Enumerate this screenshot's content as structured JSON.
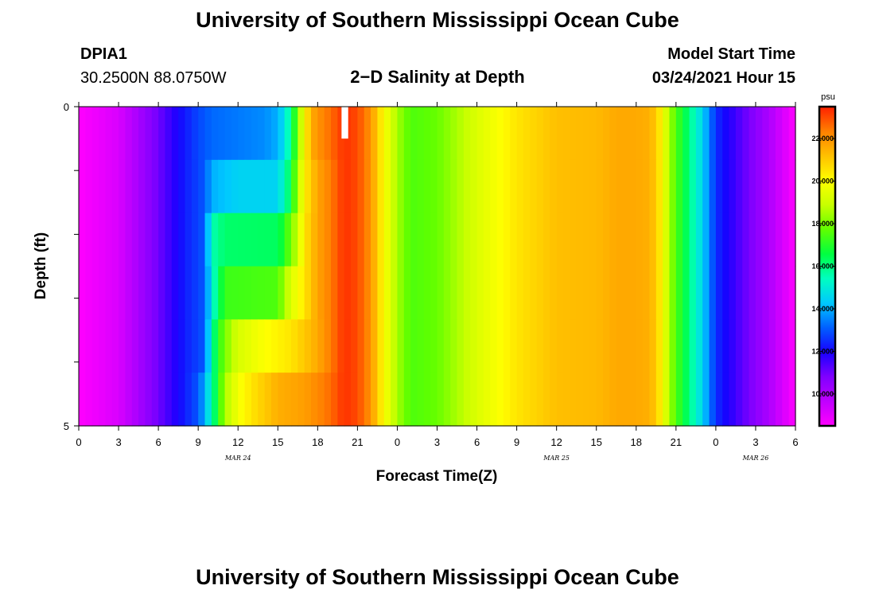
{
  "page": {
    "title_top": "University of Southern Mississippi Ocean Cube",
    "title_bottom": "University of Southern Mississippi Ocean Cube",
    "station_id": "DPIA1",
    "station_coords": "30.2500N 88.0750W",
    "plot_title": "2−D Salinity at Depth",
    "model_start_label": "Model Start Time",
    "model_start_value": "03/24/2021 Hour 15"
  },
  "colors": {
    "background": "#ffffff",
    "colormap": [
      "#ff00ff",
      "#c000ff",
      "#8000ff",
      "#1800ff",
      "#0060ff",
      "#00c8ff",
      "#00ffc0",
      "#00ff40",
      "#60ff00",
      "#c8ff00",
      "#ffff00",
      "#ffc000",
      "#ff8000",
      "#ff2000"
    ]
  },
  "chart_data": {
    "type": "heatmap",
    "title": "2−D Salinity at Depth",
    "xlabel": "Forecast Time(Z)",
    "ylabel": "Depth (ft)",
    "x_unit": "hours since 03/24 00Z",
    "xlim": [
      0,
      54
    ],
    "ylim": [
      0,
      5
    ],
    "x_ticks": [
      0,
      3,
      6,
      9,
      12,
      15,
      18,
      21,
      24,
      27,
      30,
      33,
      36,
      39,
      42,
      45,
      48,
      51,
      54
    ],
    "x_tick_labels": [
      "0",
      "3",
      "6",
      "9",
      "12",
      "15",
      "18",
      "21",
      "0",
      "3",
      "6",
      "9",
      "12",
      "15",
      "18",
      "21",
      "0",
      "3",
      "6"
    ],
    "date_labels": [
      {
        "x": 12,
        "text": "MAR 24"
      },
      {
        "x": 36,
        "text": "MAR 25"
      },
      {
        "x": 51,
        "text": "MAR 26"
      }
    ],
    "y_ticks": [
      0,
      1,
      2,
      3,
      4,
      5
    ],
    "y_tick_labels": [
      "0",
      "",
      "",
      "",
      "",
      "5"
    ],
    "time_step_hours": 0.5,
    "layer_profiles": [
      [
        [
          0,
          8.5
        ],
        [
          3,
          9.2
        ],
        [
          6,
          11
        ],
        [
          7.5,
          12
        ],
        [
          9,
          12.8
        ],
        [
          10,
          13.2
        ],
        [
          12,
          13.4
        ],
        [
          14,
          13.6
        ],
        [
          15,
          14
        ],
        [
          15.5,
          14.8
        ],
        [
          16,
          16
        ],
        [
          16.5,
          18
        ],
        [
          17,
          20
        ],
        [
          17.5,
          21.5
        ],
        [
          18,
          22
        ],
        [
          19,
          22.6
        ],
        [
          20,
          23.3
        ],
        [
          21,
          23
        ],
        [
          21.5,
          22.5
        ],
        [
          22,
          22
        ],
        [
          22.5,
          21
        ],
        [
          23,
          20
        ],
        [
          24,
          18.5
        ],
        [
          25,
          17.5
        ],
        [
          27,
          17.8
        ],
        [
          28,
          18.3
        ],
        [
          30,
          19.3
        ],
        [
          33,
          20.5
        ],
        [
          36,
          21.2
        ],
        [
          39,
          21.3
        ],
        [
          40.5,
          21.6
        ],
        [
          42,
          21.6
        ],
        [
          43,
          21.5
        ],
        [
          43.5,
          21
        ],
        [
          44,
          20
        ],
        [
          44.5,
          18.5
        ],
        [
          45,
          17.5
        ],
        [
          46,
          16
        ],
        [
          47,
          14.5
        ],
        [
          47.5,
          13.5
        ],
        [
          48,
          12.5
        ],
        [
          50,
          11.2
        ],
        [
          52,
          10
        ],
        [
          54,
          8.5
        ]
      ],
      [
        [
          0,
          8.5
        ],
        [
          3,
          9.2
        ],
        [
          6,
          11
        ],
        [
          8,
          12.3
        ],
        [
          9.5,
          13
        ],
        [
          10,
          14
        ],
        [
          12,
          14.5
        ],
        [
          15,
          14.5
        ],
        [
          15.5,
          15.5
        ],
        [
          16,
          16.5
        ],
        [
          16.5,
          18.5
        ],
        [
          17,
          20.3
        ],
        [
          18,
          21.7
        ],
        [
          19,
          22.4
        ],
        [
          20,
          23.3
        ],
        [
          21,
          23
        ],
        [
          22,
          22
        ],
        [
          22.5,
          21
        ],
        [
          23,
          20
        ],
        [
          24,
          18.5
        ],
        [
          25,
          17.5
        ],
        [
          27,
          17.8
        ],
        [
          28,
          18.3
        ],
        [
          30,
          19.3
        ],
        [
          33,
          20.5
        ],
        [
          36,
          21.2
        ],
        [
          39,
          21.3
        ],
        [
          40.5,
          21.6
        ],
        [
          42,
          21.6
        ],
        [
          43,
          21.5
        ],
        [
          43.5,
          21
        ],
        [
          44,
          20
        ],
        [
          44.5,
          18.5
        ],
        [
          45,
          17.5
        ],
        [
          46,
          16
        ],
        [
          47,
          14.5
        ],
        [
          47.5,
          13.5
        ],
        [
          48,
          12.5
        ],
        [
          50,
          11.2
        ],
        [
          52,
          10
        ],
        [
          54,
          8.5
        ]
      ],
      [
        [
          0,
          8.5
        ],
        [
          3,
          9.2
        ],
        [
          6,
          11
        ],
        [
          8,
          12.3
        ],
        [
          9.5,
          13
        ],
        [
          10,
          15.5
        ],
        [
          11,
          16.2
        ],
        [
          15,
          16.3
        ],
        [
          15.5,
          17
        ],
        [
          16,
          18
        ],
        [
          16.5,
          19
        ],
        [
          17,
          20.5
        ],
        [
          18,
          21.7
        ],
        [
          19,
          22.4
        ],
        [
          20,
          23.3
        ],
        [
          21,
          23
        ],
        [
          22,
          22
        ],
        [
          22.5,
          21
        ],
        [
          23,
          20
        ],
        [
          24,
          18.5
        ],
        [
          25,
          17.5
        ],
        [
          27,
          17.8
        ],
        [
          28,
          18.3
        ],
        [
          30,
          19.3
        ],
        [
          33,
          20.5
        ],
        [
          36,
          21.2
        ],
        [
          39,
          21.3
        ],
        [
          40.5,
          21.6
        ],
        [
          42,
          21.6
        ],
        [
          43,
          21.5
        ],
        [
          43.5,
          21
        ],
        [
          44,
          20
        ],
        [
          44.5,
          18.5
        ],
        [
          45,
          17.5
        ],
        [
          46,
          16
        ],
        [
          47,
          14.5
        ],
        [
          47.5,
          13.5
        ],
        [
          48,
          12.5
        ],
        [
          50,
          11.2
        ],
        [
          52,
          10
        ],
        [
          54,
          8.5
        ]
      ],
      [
        [
          0,
          8.5
        ],
        [
          3,
          9.2
        ],
        [
          6,
          11
        ],
        [
          8,
          12.3
        ],
        [
          9.5,
          13
        ],
        [
          10,
          15
        ],
        [
          11,
          17.3
        ],
        [
          15,
          17.5
        ],
        [
          15.5,
          18.5
        ],
        [
          16,
          19.3
        ],
        [
          17,
          20.5
        ],
        [
          18,
          21.7
        ],
        [
          19,
          22.4
        ],
        [
          20,
          23.3
        ],
        [
          21,
          23
        ],
        [
          22,
          22
        ],
        [
          22.5,
          21
        ],
        [
          23,
          20
        ],
        [
          24,
          18.5
        ],
        [
          25,
          17.5
        ],
        [
          27,
          17.8
        ],
        [
          28,
          18.3
        ],
        [
          30,
          19.3
        ],
        [
          33,
          20.5
        ],
        [
          36,
          21.2
        ],
        [
          39,
          21.3
        ],
        [
          40.5,
          21.6
        ],
        [
          42,
          21.6
        ],
        [
          43,
          21.5
        ],
        [
          43.5,
          21
        ],
        [
          44,
          20
        ],
        [
          44.5,
          18.5
        ],
        [
          45,
          17.5
        ],
        [
          46,
          16
        ],
        [
          47,
          14.5
        ],
        [
          47.5,
          13.5
        ],
        [
          48,
          12.5
        ],
        [
          50,
          11.2
        ],
        [
          52,
          10
        ],
        [
          54,
          8.5
        ]
      ],
      [
        [
          0,
          8.5
        ],
        [
          3,
          9.2
        ],
        [
          6,
          11
        ],
        [
          8,
          12.3
        ],
        [
          9.5,
          13
        ],
        [
          10,
          15.5
        ],
        [
          10.5,
          17
        ],
        [
          11,
          18
        ],
        [
          12,
          19.2
        ],
        [
          14,
          20
        ],
        [
          16,
          20.5
        ],
        [
          18,
          21.6
        ],
        [
          19,
          22.4
        ],
        [
          20,
          23.3
        ],
        [
          21,
          23
        ],
        [
          22,
          22
        ],
        [
          22.5,
          21
        ],
        [
          23,
          20
        ],
        [
          24,
          18.5
        ],
        [
          25,
          17.5
        ],
        [
          27,
          17.8
        ],
        [
          28,
          18.3
        ],
        [
          30,
          19.3
        ],
        [
          33,
          20.5
        ],
        [
          36,
          21.2
        ],
        [
          39,
          21.3
        ],
        [
          40.5,
          21.6
        ],
        [
          42,
          21.6
        ],
        [
          43,
          21.5
        ],
        [
          43.5,
          21
        ],
        [
          44,
          20
        ],
        [
          44.5,
          18.5
        ],
        [
          45,
          17.5
        ],
        [
          46,
          16
        ],
        [
          47,
          14.5
        ],
        [
          47.5,
          13.5
        ],
        [
          48,
          12.5
        ],
        [
          50,
          11.2
        ],
        [
          52,
          10
        ],
        [
          54,
          8.5
        ]
      ],
      [
        [
          0,
          8.5
        ],
        [
          3,
          9.2
        ],
        [
          6,
          11
        ],
        [
          8,
          12.3
        ],
        [
          9,
          13
        ],
        [
          9.5,
          14
        ],
        [
          10,
          15.5
        ],
        [
          10.5,
          17
        ],
        [
          11,
          18.5
        ],
        [
          12,
          19.8
        ],
        [
          13,
          20.5
        ],
        [
          14,
          21
        ],
        [
          15,
          21.5
        ],
        [
          17,
          21.8
        ],
        [
          18,
          22.2
        ],
        [
          19,
          22.6
        ],
        [
          20,
          23.3
        ],
        [
          21,
          23
        ],
        [
          22,
          22
        ],
        [
          22.5,
          21
        ],
        [
          23,
          20
        ],
        [
          24,
          18.5
        ],
        [
          25,
          17.5
        ],
        [
          27,
          17.8
        ],
        [
          28,
          18.3
        ],
        [
          30,
          19.3
        ],
        [
          33,
          20.5
        ],
        [
          36,
          21.2
        ],
        [
          39,
          21.3
        ],
        [
          40.5,
          21.6
        ],
        [
          42,
          21.6
        ],
        [
          43,
          21.5
        ],
        [
          43.5,
          21
        ],
        [
          44,
          20
        ],
        [
          44.5,
          18.5
        ],
        [
          45,
          17.5
        ],
        [
          46,
          16
        ],
        [
          47,
          14.5
        ],
        [
          47.5,
          13.5
        ],
        [
          48,
          12.5
        ],
        [
          50,
          11.2
        ],
        [
          52,
          10
        ],
        [
          54,
          8.5
        ]
      ]
    ],
    "missing_cells": [
      {
        "x_start": 19.8,
        "x_end": 20.3,
        "depth_start": 0,
        "depth_end": 0.5
      }
    ],
    "colorbar": {
      "unit": "psu",
      "range": [
        8.5,
        23.5
      ],
      "tick_values": [
        10,
        12,
        14,
        16,
        18,
        20,
        22
      ],
      "tick_labels": [
        "10.000",
        "12.000",
        "14.000",
        "16.000",
        "18.000",
        "20.000",
        "22.000"
      ]
    }
  }
}
